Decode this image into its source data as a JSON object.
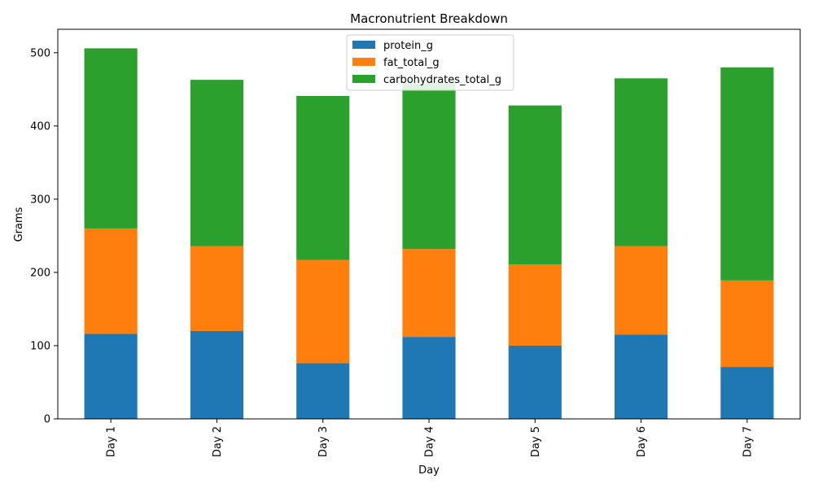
{
  "chart_data": {
    "type": "bar",
    "stacked": true,
    "title": "Macronutrient Breakdown",
    "xlabel": "Day",
    "ylabel": "Grams",
    "categories": [
      "Day 1",
      "Day 2",
      "Day 3",
      "Day 4",
      "Day 5",
      "Day 6",
      "Day 7"
    ],
    "ylim": [
      0,
      532
    ],
    "yticks": [
      0,
      100,
      200,
      300,
      400,
      500
    ],
    "legend_position": "top-center",
    "series": [
      {
        "name": "protein_g",
        "color": "#1f77b4",
        "values": [
          116,
          120,
          76,
          112,
          100,
          115,
          71
        ]
      },
      {
        "name": "fat_total_g",
        "color": "#ff7f0e",
        "values": [
          144,
          116,
          141,
          120,
          111,
          121,
          118
        ]
      },
      {
        "name": "carbohydrates_total_g",
        "color": "#2ca02c",
        "values": [
          246,
          227,
          224,
          226,
          217,
          229,
          291
        ]
      }
    ]
  }
}
